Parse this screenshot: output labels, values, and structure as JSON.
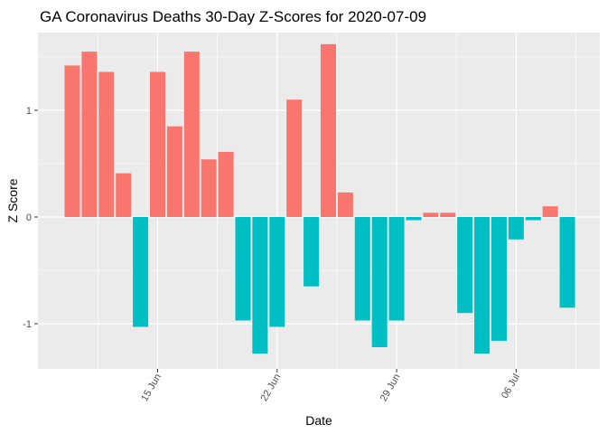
{
  "chart_data": {
    "type": "bar",
    "title": "GA Coronavirus Deaths 30-Day Z-Scores for 2020-07-09",
    "xlabel": "Date",
    "ylabel": "Z Score",
    "ylim": [
      -1.42,
      1.83
    ],
    "grid": true,
    "legend": "none",
    "colors": {
      "positive": "#f8766d",
      "negative": "#00bfc4",
      "panel": "#ebebeb",
      "grid_major": "#ffffff"
    },
    "x_start": "2020-06-10",
    "x_ticks": [
      {
        "label": "15 Jun",
        "index": 5
      },
      {
        "label": "22 Jun",
        "index": 12
      },
      {
        "label": "29 Jun",
        "index": 19
      },
      {
        "label": "06 Jul",
        "index": 26
      }
    ],
    "y_ticks": [
      -1,
      0,
      1
    ],
    "values": [
      1.42,
      1.55,
      1.36,
      0.41,
      -1.03,
      1.36,
      0.85,
      1.55,
      0.54,
      0.61,
      -0.97,
      -1.28,
      -1.03,
      1.1,
      -0.65,
      1.62,
      0.23,
      -0.97,
      -1.22,
      -0.97,
      -0.03,
      0.04,
      0.04,
      -0.9,
      -1.28,
      -1.16,
      -0.21,
      -0.03,
      0.1,
      -0.85
    ]
  }
}
